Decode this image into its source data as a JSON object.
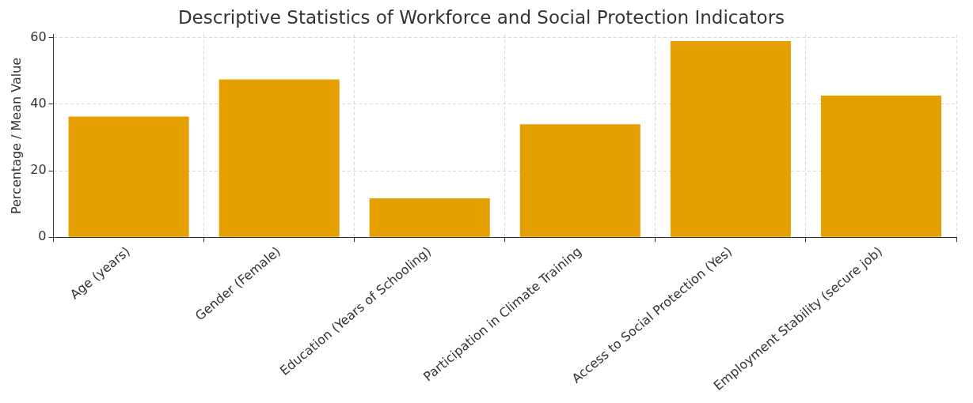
{
  "chart_data": {
    "type": "bar",
    "title": "Descriptive Statistics of Workforce and Social Protection Indicators",
    "ylabel": "Percentage / Mean Value",
    "categories": [
      "Age (years)",
      "Gender (Female)",
      "Education (Years of Schooling)",
      "Participation in Climate Training",
      "Access to Social Protection (Yes)",
      "Employment Stability (secure job)"
    ],
    "values": [
      36.3,
      47.5,
      11.7,
      34.0,
      59.0,
      42.6
    ],
    "color": "#e69f00",
    "ylim": [
      0,
      61
    ],
    "yticks": [
      0,
      20,
      40,
      60
    ],
    "grid": true
  }
}
